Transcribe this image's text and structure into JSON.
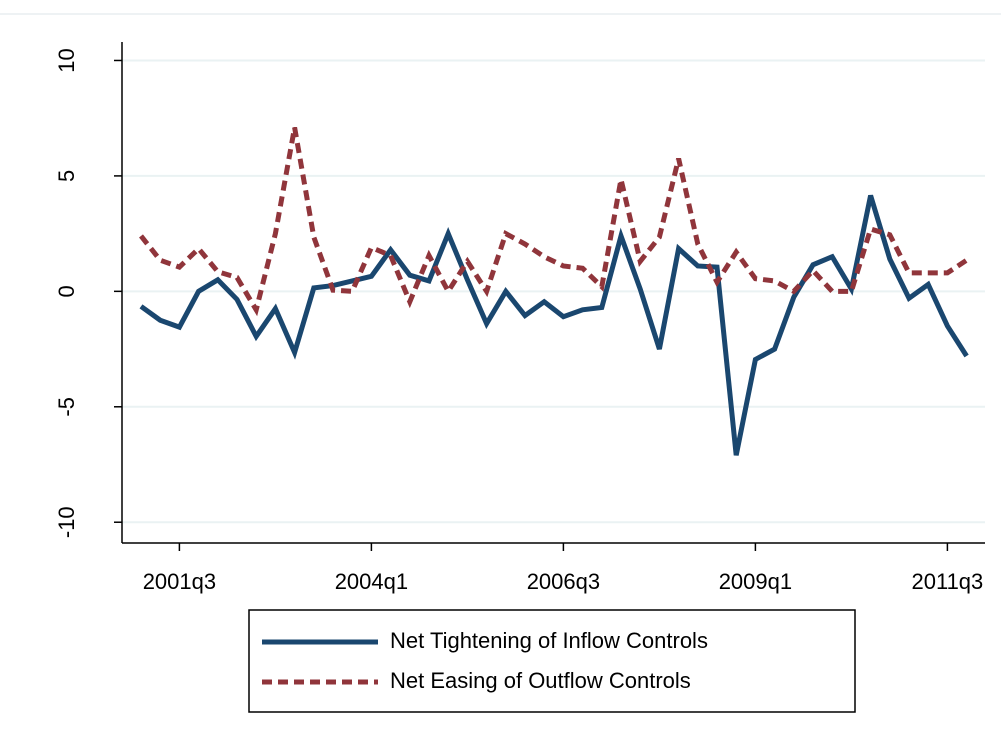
{
  "chart_data": {
    "type": "line",
    "categories": [
      null,
      null,
      "2001q3",
      null,
      null,
      null,
      null,
      null,
      null,
      null,
      null,
      null,
      "2004q1",
      null,
      null,
      null,
      null,
      null,
      null,
      null,
      null,
      null,
      "2006q3",
      null,
      null,
      null,
      null,
      null,
      null,
      null,
      null,
      null,
      "2009q1",
      null,
      null,
      null,
      null,
      null,
      null,
      null,
      null,
      null,
      "2011q3",
      null
    ],
    "series": [
      {
        "name": "Net Tightening of Inflow Controls",
        "color": "#1a476f",
        "dash": false,
        "values": [
          -0.65,
          -1.25,
          -1.55,
          0,
          0.5,
          -0.35,
          -1.95,
          -0.75,
          -2.65,
          0.15,
          0.25,
          0.45,
          0.65,
          1.8,
          0.7,
          0.45,
          2.5,
          0.5,
          -1.4,
          0,
          -1.05,
          -0.45,
          -1.1,
          -0.8,
          -0.7,
          2.4,
          0.1,
          -2.5,
          1.85,
          1.1,
          1.05,
          -7.1,
          -2.95,
          -2.5,
          -0.25,
          1.15,
          1.5,
          0.1,
          4.15,
          1.4,
          -0.3,
          0.3,
          -1.5,
          -2.8
        ]
      },
      {
        "name": "Net Easing of Outflow Controls",
        "color": "#90353b",
        "dash": true,
        "values": [
          2.4,
          1.35,
          1.05,
          1.85,
          0.85,
          0.6,
          -0.8,
          2.5,
          7.1,
          2.35,
          0.05,
          0,
          1.9,
          1.55,
          -0.45,
          1.55,
          0,
          1.3,
          0,
          2.5,
          2.05,
          1.5,
          1.1,
          1.0,
          0.2,
          4.85,
          1.3,
          2.35,
          5.75,
          2.05,
          0.4,
          1.7,
          0.55,
          0.45,
          0,
          0.9,
          0,
          0,
          2.7,
          2.45,
          0.8,
          0.8,
          0.8,
          1.35
        ]
      }
    ],
    "ylim": [
      -10.9,
      10.8
    ],
    "yticks": [
      -10,
      -5,
      0,
      5,
      10
    ],
    "grid": true
  }
}
